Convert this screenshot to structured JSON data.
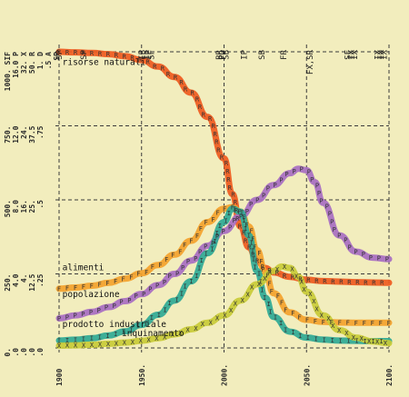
{
  "chart_data": {
    "type": "line",
    "title": "",
    "xlabel": "",
    "ylabel": "",
    "xlim": [
      1900,
      2100
    ],
    "ylim": [
      0,
      1000
    ],
    "x_ticks": [
      "1900",
      "1950.",
      "2000.",
      "2050.",
      "2100."
    ],
    "y_tick_columns": [
      [
        "0.",
        "250.",
        "500.",
        "750.",
        "1000. SIF"
      ],
      [
        ".0",
        "4.0",
        "8.0",
        "12.0",
        "16.0 P"
      ],
      [
        ".0",
        "4.",
        "16.",
        "24.",
        "32. X"
      ],
      [
        ".0",
        "12.5",
        "25.",
        "37.5",
        "50. R"
      ],
      [
        ".0",
        ".25",
        ".5",
        ".75",
        "1. D"
      ],
      [
        "",
        "",
        "",
        "",
        ".5 A"
      ],
      [
        "",
        "",
        "",
        "",
        "SP"
      ]
    ],
    "top_annotations": [
      {
        "year": 1900,
        "text": "SP"
      },
      {
        "year": 1915,
        "text": "SP"
      },
      {
        "year": 1950,
        "text": "IP"
      },
      {
        "year": 1952,
        "text": "IP"
      },
      {
        "year": 1954,
        "text": "IP"
      },
      {
        "year": 1956,
        "text": "SF"
      },
      {
        "year": 1997,
        "text": "BR"
      },
      {
        "year": 1999,
        "text": "PD"
      },
      {
        "year": 2001,
        "text": "SB"
      },
      {
        "year": 2012,
        "text": "IP"
      },
      {
        "year": 2023,
        "text": "SB"
      },
      {
        "year": 2036,
        "text": "FR"
      },
      {
        "year": 2052,
        "text": "FX,SR"
      },
      {
        "year": 2075,
        "text": "SF"
      },
      {
        "year": 2077,
        "text": "IX"
      },
      {
        "year": 2079,
        "text": "IX"
      },
      {
        "year": 2093,
        "text": "IX"
      },
      {
        "year": 2095,
        "text": "IX"
      },
      {
        "year": 2097,
        "text": "IX"
      }
    ],
    "series": [
      {
        "name": "risorse naturali",
        "glyph": "R",
        "color": "#ef5a1e",
        "x": [
          1900,
          1910,
          1920,
          1930,
          1940,
          1950,
          1960,
          1970,
          1980,
          1990,
          2000,
          2005,
          2010,
          2015,
          2020,
          2025,
          2030,
          2040,
          2050,
          2060,
          2070,
          2080,
          2090,
          2100
        ],
        "y": [
          1000,
          998,
          996,
          992,
          985,
          972,
          950,
          915,
          862,
          780,
          640,
          520,
          410,
          340,
          295,
          270,
          255,
          240,
          230,
          226,
          224,
          222,
          221,
          220
        ]
      },
      {
        "name": "alimenti",
        "glyph": "F",
        "color": "#f4a22c",
        "x": [
          1900,
          1910,
          1920,
          1930,
          1940,
          1950,
          1960,
          1970,
          1980,
          1990,
          2000,
          2005,
          2010,
          2015,
          2020,
          2025,
          2030,
          2040,
          2050,
          2060,
          2070,
          2080,
          2090,
          2100
        ],
        "y": [
          200,
          204,
          210,
          220,
          234,
          252,
          280,
          315,
          362,
          425,
          470,
          475,
          460,
          410,
          330,
          255,
          185,
          120,
          95,
          88,
          86,
          85,
          85,
          85
        ]
      },
      {
        "name": "popolazione",
        "glyph": "P",
        "color": "#a86ec2",
        "x": [
          1900,
          1910,
          1920,
          1930,
          1940,
          1950,
          1960,
          1970,
          1980,
          1990,
          2000,
          2010,
          2020,
          2030,
          2040,
          2045,
          2050,
          2055,
          2060,
          2070,
          2080,
          2090,
          2100
        ],
        "y": [
          100,
          110,
          122,
          138,
          158,
          182,
          212,
          250,
          295,
          345,
          395,
          445,
          500,
          550,
          590,
          605,
          600,
          560,
          490,
          380,
          325,
          305,
          300
        ]
      },
      {
        "name": "prodotto industriale",
        "glyph": "I",
        "color": "#2fa995",
        "x": [
          1900,
          1910,
          1920,
          1930,
          1940,
          1950,
          1960,
          1970,
          1980,
          1990,
          2000,
          2005,
          2010,
          2015,
          2020,
          2025,
          2030,
          2040,
          2050,
          2060,
          2070,
          2080,
          2090,
          2100
        ],
        "y": [
          25,
          28,
          33,
          42,
          56,
          78,
          112,
          160,
          225,
          320,
          425,
          470,
          460,
          380,
          260,
          170,
          105,
          55,
          35,
          28,
          25,
          24,
          23,
          23
        ]
      },
      {
        "name": "inquinamento",
        "glyph": "X",
        "color": "#c9cb37",
        "x": [
          1900,
          1910,
          1920,
          1930,
          1940,
          1950,
          1960,
          1970,
          1980,
          1990,
          2000,
          2010,
          2020,
          2030,
          2035,
          2040,
          2045,
          2050,
          2060,
          2070,
          2080,
          2090,
          2100
        ],
        "y": [
          8,
          9,
          11,
          14,
          18,
          24,
          33,
          46,
          63,
          85,
          110,
          160,
          215,
          260,
          275,
          270,
          240,
          190,
          110,
          60,
          35,
          22,
          16
        ]
      }
    ],
    "label_positions_note": "labels placed next to curves as printed",
    "curve_labels": {
      "risorse naturali": "risorse naturali",
      "alimenti": "alimenti",
      "popolazione": "popolazione",
      "prodotto industriale": "prodotto industriale",
      "inquinamento": "inquinamento"
    },
    "grid": true,
    "legend": "none"
  }
}
